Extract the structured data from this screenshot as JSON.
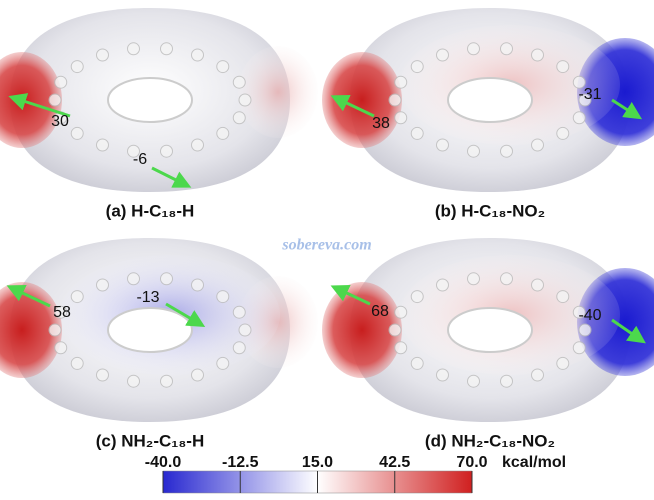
{
  "panels": [
    {
      "caption": "(a) H-C₁₈-H",
      "labels": [
        30,
        -6
      ]
    },
    {
      "caption": "(b) H-C₁₈-NO₂",
      "labels": [
        38,
        -31
      ]
    },
    {
      "caption": "(c) NH₂-C₁₈-H",
      "labels": [
        58,
        -13
      ]
    },
    {
      "caption": "(d) NH₂-C₁₈-NO₂",
      "labels": [
        68,
        -40
      ]
    }
  ],
  "watermark": "sobereva.com",
  "colorbar": {
    "lim": [
      -40,
      70
    ],
    "ticks": [
      {
        "value": -40,
        "label": "-40.0"
      },
      {
        "value": -12.5,
        "label": "-12.5"
      },
      {
        "value": 15,
        "label": "15.0"
      },
      {
        "value": 42.5,
        "label": "42.5"
      },
      {
        "value": 70,
        "label": "70.0"
      }
    ],
    "unit": "kcal/mol"
  }
}
